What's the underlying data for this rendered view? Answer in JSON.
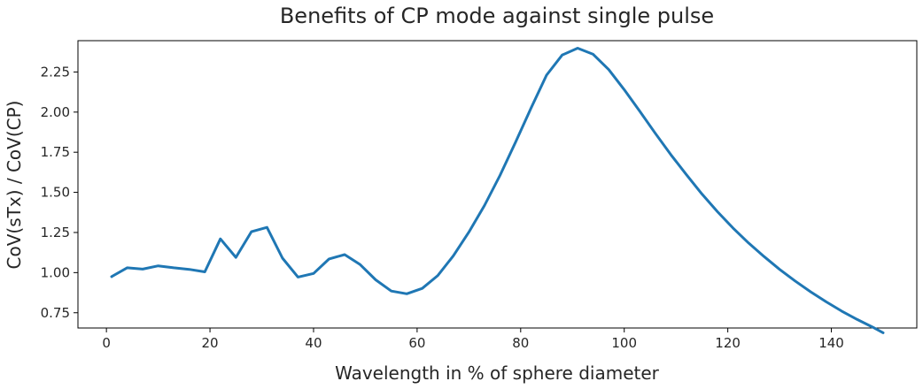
{
  "chart_data": {
    "type": "line",
    "title": "Benefits of CP mode against single pulse",
    "xlabel": "Wavelength in % of sphere diameter",
    "ylabel": "CoV(sTx) / CoV(CP)",
    "xlim": [
      -5.5,
      156.5
    ],
    "ylim": [
      0.655,
      2.445
    ],
    "xticks": [
      0,
      20,
      40,
      60,
      80,
      100,
      120,
      140
    ],
    "yticks": [
      0.75,
      1.0,
      1.25,
      1.5,
      1.75,
      2.0,
      2.25
    ],
    "ytick_labels": [
      "0.75",
      "1.00",
      "1.25",
      "1.50",
      "1.75",
      "2.00",
      "2.25"
    ],
    "grid": false,
    "color": "#1f77b4",
    "series": [
      {
        "x": [
          1,
          4,
          7,
          10,
          13,
          16,
          19,
          22,
          25,
          28,
          31,
          34,
          37,
          40,
          43,
          46,
          49,
          52,
          55,
          58,
          61,
          64,
          67,
          70,
          73,
          76,
          79,
          82,
          85,
          88,
          91,
          94,
          97,
          100,
          103,
          106,
          109,
          112,
          115,
          118,
          121,
          124,
          127,
          130,
          133,
          136,
          139,
          142,
          145,
          148,
          150
        ],
        "y": [
          0.975,
          1.03,
          1.022,
          1.042,
          1.03,
          1.02,
          1.005,
          1.21,
          1.095,
          1.255,
          1.282,
          1.09,
          0.972,
          0.995,
          1.085,
          1.112,
          1.05,
          0.955,
          0.885,
          0.868,
          0.902,
          0.982,
          1.105,
          1.252,
          1.418,
          1.605,
          1.812,
          2.025,
          2.23,
          2.355,
          2.398,
          2.36,
          2.265,
          2.14,
          2.005,
          1.868,
          1.735,
          1.61,
          1.49,
          1.38,
          1.278,
          1.185,
          1.1,
          1.02,
          0.948,
          0.88,
          0.818,
          0.76,
          0.708,
          0.66,
          0.625
        ]
      }
    ]
  }
}
